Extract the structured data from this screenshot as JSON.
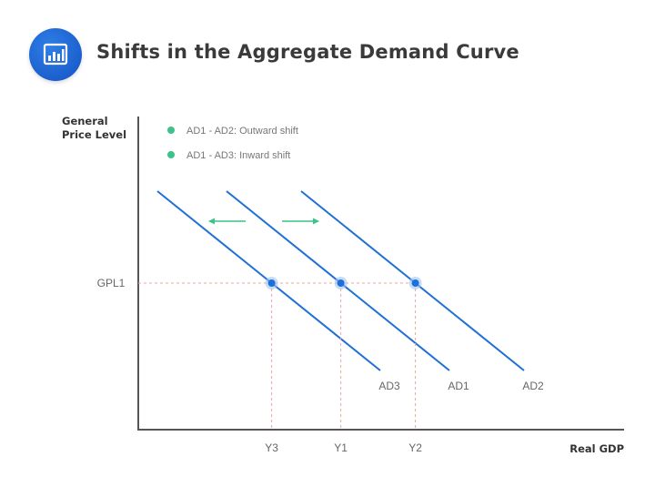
{
  "header": {
    "title": "Shifts in the Aggregate Demand Curve",
    "icon": "bar-chart-icon"
  },
  "axes": {
    "y_label_line1": "General",
    "y_label_line2": "Price Level",
    "x_label": "Real GDP"
  },
  "legend": [
    {
      "text": "AD1 - AD2: Outward shift",
      "color": "#3cc28a"
    },
    {
      "text": "AD1 - AD3: Inward shift",
      "color": "#3cc28a"
    }
  ],
  "price_level": "GPL1",
  "curves": [
    {
      "name": "AD3",
      "output_label": "Y3"
    },
    {
      "name": "AD1",
      "output_label": "Y1"
    },
    {
      "name": "AD2",
      "output_label": "Y2"
    }
  ],
  "colors": {
    "curve": "#1f6fd6",
    "guide": "#f2a0a0",
    "arrow": "#3cc28a",
    "axis": "#555555"
  }
}
